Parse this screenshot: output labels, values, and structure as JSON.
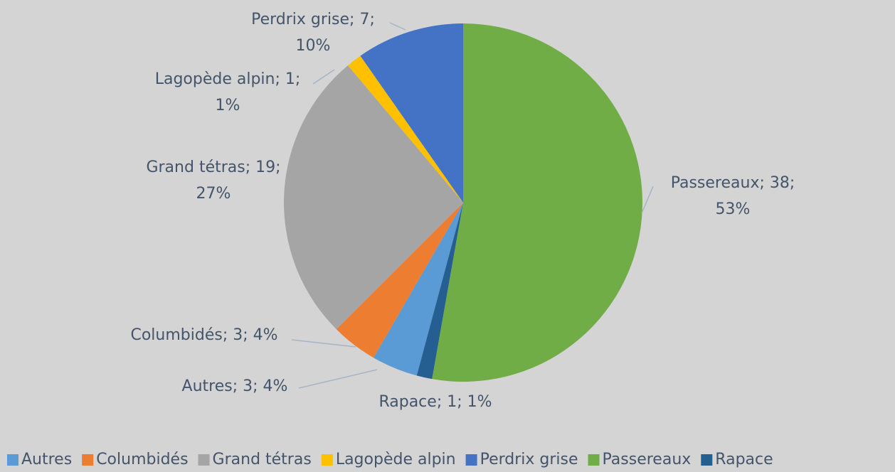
{
  "chart_data": {
    "type": "pie",
    "categories": [
      "Autres",
      "Columbidés",
      "Grand tétras",
      "Lagopède alpin",
      "Perdrix grise",
      "Passereaux",
      "Rapace"
    ],
    "values": [
      3,
      3,
      19,
      1,
      7,
      38,
      1
    ],
    "value_labels": [
      [
        "Autres; 3; 4%"
      ],
      [
        "Columbidés; 3; 4%"
      ],
      [
        "Grand tétras; 19;",
        "27%"
      ],
      [
        "Lagopède alpin; 1;",
        "1%"
      ],
      [
        "Perdrix grise; 7;",
        "10%"
      ],
      [
        "Passereaux; 38;",
        "53%"
      ],
      [
        "Rapace; 1; 1%"
      ]
    ],
    "colors": [
      "#5b9bd5",
      "#ed7d31",
      "#a5a5a5",
      "#ffc000",
      "#4472c4",
      "#70ad47",
      "#255e91"
    ],
    "legend": "bottom"
  }
}
